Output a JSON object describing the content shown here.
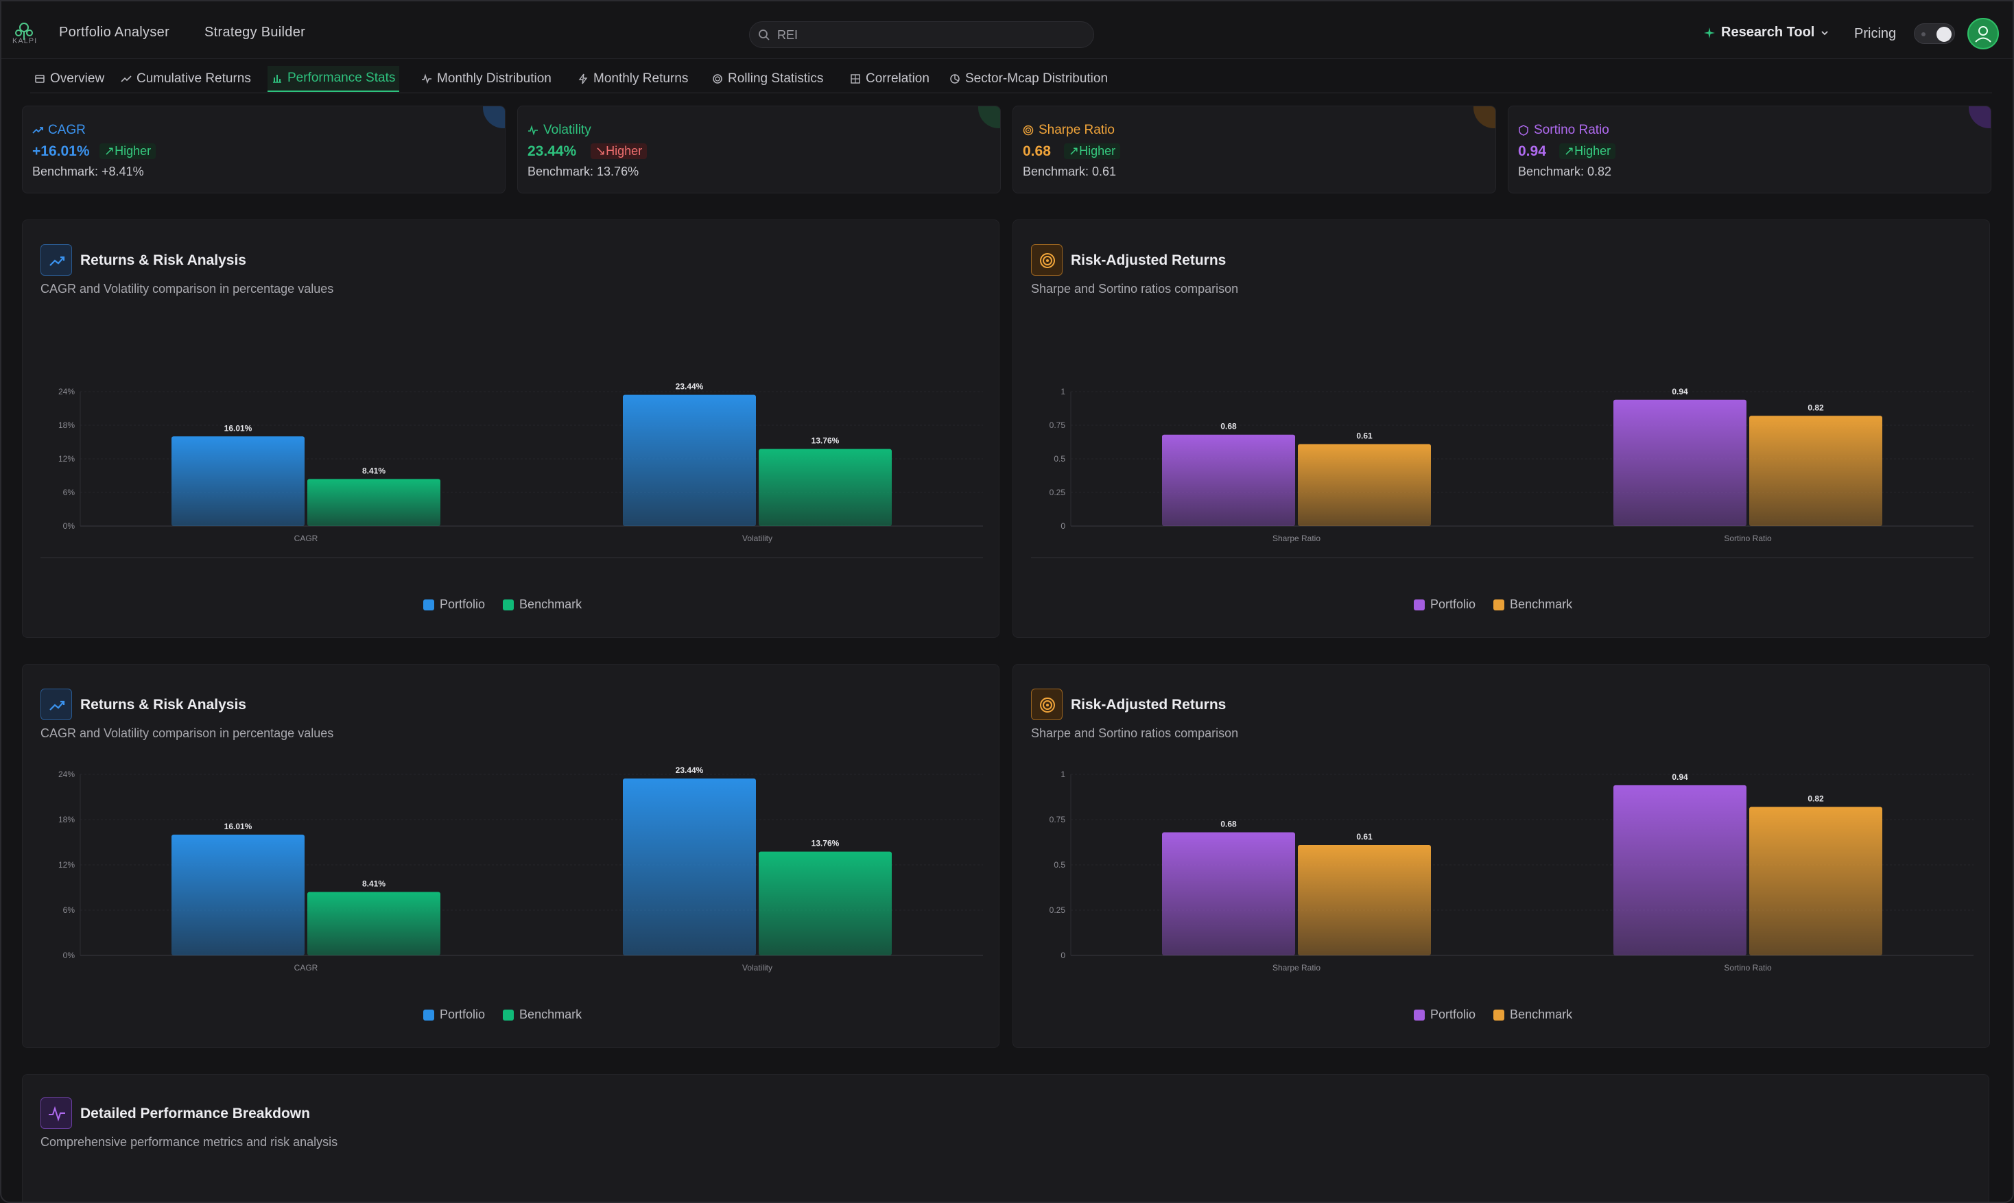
{
  "header": {
    "logo_text": "KALPI",
    "nav": [
      "Portfolio Analyser",
      "Strategy Builder"
    ],
    "search_value": "REI",
    "research_tool": "Research Tool",
    "pricing": "Pricing"
  },
  "tabs": [
    {
      "label": "Overview",
      "icon": "overview-icon"
    },
    {
      "label": "Cumulative Returns",
      "icon": "trend-icon"
    },
    {
      "label": "Performance Stats",
      "icon": "bar-chart-icon"
    },
    {
      "label": "Monthly Distribution",
      "icon": "pulse-icon"
    },
    {
      "label": "Monthly Returns",
      "icon": "bolt-icon"
    },
    {
      "label": "Rolling Statistics",
      "icon": "circle-icon"
    },
    {
      "label": "Correlation",
      "icon": "grid-icon"
    },
    {
      "label": "Sector-Mcap Distribution",
      "icon": "pie-icon"
    }
  ],
  "active_tab": "Performance Stats",
  "stats": [
    {
      "label": "CAGR",
      "value": "+16.01%",
      "badge": "Higher",
      "badge_state": "good",
      "benchmark": "Benchmark: +8.41%",
      "color": "#3b93ef"
    },
    {
      "label": "Volatility",
      "value": "23.44%",
      "badge": "Higher",
      "badge_state": "bad",
      "benchmark": "Benchmark: 13.76%",
      "color": "#2ec27e"
    },
    {
      "label": "Sharpe Ratio",
      "value": "0.68",
      "badge": "Higher",
      "badge_state": "good",
      "benchmark": "Benchmark: 0.61",
      "color": "#f0a43a"
    },
    {
      "label": "Sortino Ratio",
      "value": "0.94",
      "badge": "Higher",
      "badge_state": "good",
      "benchmark": "Benchmark: 0.82",
      "color": "#b06bf0"
    }
  ],
  "panels": {
    "returns_title": "Returns & Risk Analysis",
    "returns_sub": "CAGR and Volatility comparison in percentage values",
    "risk_title": "Risk-Adjusted Returns",
    "risk_sub": "Sharpe and Sortino ratios comparison",
    "legend_portfolio": "Portfolio",
    "legend_benchmark": "Benchmark",
    "breakdown_title": "Detailed Performance Breakdown",
    "breakdown_sub": "Comprehensive performance metrics and risk analysis"
  },
  "colors": {
    "portfolio_blue": "#2a8fe6",
    "benchmark_green": "#10b978",
    "portfolio_purple": "#a45ee0",
    "benchmark_orange": "#e9a037"
  },
  "chart_data": [
    {
      "type": "bar",
      "categories": [
        "CAGR",
        "Volatility"
      ],
      "series": [
        {
          "name": "Portfolio",
          "values": [
            16.01,
            23.44
          ],
          "labels": [
            "16.01%",
            "23.44%"
          ]
        },
        {
          "name": "Benchmark",
          "values": [
            8.41,
            13.76
          ],
          "labels": [
            "8.41%",
            "13.76%"
          ]
        }
      ],
      "yticks": [
        "0%",
        "6%",
        "12%",
        "18%",
        "24%"
      ],
      "ylim": [
        0,
        24
      ]
    },
    {
      "type": "bar",
      "categories": [
        "Sharpe Ratio",
        "Sortino Ratio"
      ],
      "series": [
        {
          "name": "Portfolio",
          "values": [
            0.68,
            0.94
          ],
          "labels": [
            "0.68",
            "0.94"
          ]
        },
        {
          "name": "Benchmark",
          "values": [
            0.61,
            0.82
          ],
          "labels": [
            "0.61",
            "0.82"
          ]
        }
      ],
      "yticks": [
        "0",
        "0.25",
        "0.5",
        "0.75",
        "1"
      ],
      "ylim": [
        0,
        1
      ]
    }
  ]
}
